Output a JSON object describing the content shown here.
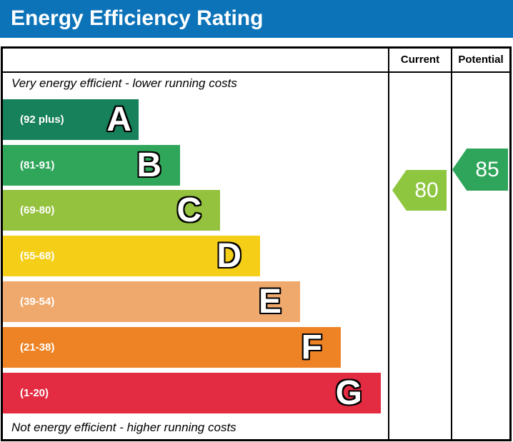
{
  "header": {
    "title": "Energy Efficiency Rating",
    "bg_color": "#0d73b9",
    "text_color": "#ffffff"
  },
  "table": {
    "columns": {
      "current_label": "Current",
      "potential_label": "Potential"
    },
    "top_note": "Very energy efficient - lower running costs",
    "bottom_note": "Not energy efficient - higher running costs"
  },
  "chart_data": {
    "type": "bar",
    "subtype": "epc-energy-efficiency-rating",
    "title": "Energy Efficiency Rating",
    "bands": [
      {
        "letter": "A",
        "range_label": "(92 plus)",
        "range": [
          92,
          100
        ],
        "color": "#17815b"
      },
      {
        "letter": "B",
        "range_label": "(81-91)",
        "range": [
          81,
          91
        ],
        "color": "#30a65b"
      },
      {
        "letter": "C",
        "range_label": "(69-80)",
        "range": [
          69,
          80
        ],
        "color": "#94c13e"
      },
      {
        "letter": "D",
        "range_label": "(55-68)",
        "range": [
          55,
          68
        ],
        "color": "#f5ce17"
      },
      {
        "letter": "E",
        "range_label": "(39-54)",
        "range": [
          39,
          54
        ],
        "color": "#f0a96c"
      },
      {
        "letter": "F",
        "range_label": "(21-38)",
        "range": [
          21,
          38
        ],
        "color": "#ee8326"
      },
      {
        "letter": "G",
        "range_label": "(1-20)",
        "range": [
          1,
          20
        ],
        "color": "#e32b42"
      }
    ],
    "current": {
      "value": 80,
      "band": "C",
      "color": "#8ec63f"
    },
    "potential": {
      "value": 85,
      "band": "B",
      "color": "#2ea55a"
    }
  }
}
